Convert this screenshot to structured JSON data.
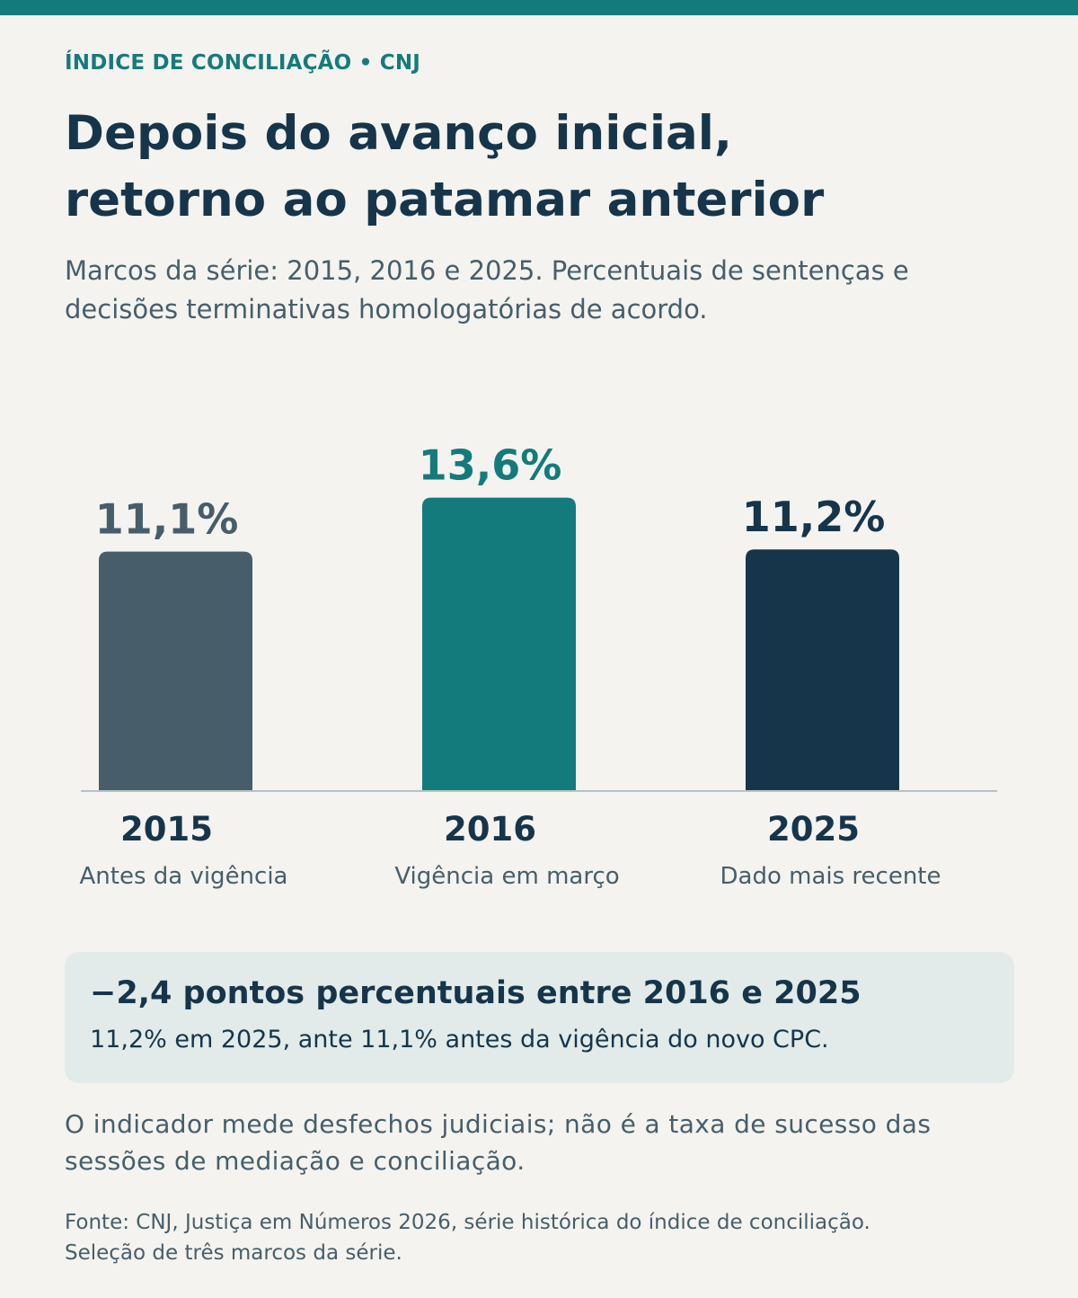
{
  "colors": {
    "accent": "#147b7c",
    "dark": "#16354b",
    "muted": "#475e6a",
    "background": "#f4f3ef",
    "callout_bg": "#e2ebe9",
    "baseline": "#b5c3c6"
  },
  "header": {
    "kicker": "ÍNDICE DE CONCILIAÇÃO • CNJ",
    "title_lines": [
      "Depois do avanço inicial,",
      "retorno ao patamar anterior"
    ],
    "subtitle_lines": [
      "Marcos da série: 2015, 2016 e 2025. Percentuais de sentenças e",
      "decisões terminativas homologatórias de acordo."
    ]
  },
  "chart_data": {
    "type": "bar",
    "categories": [
      "2015",
      "2016",
      "2025"
    ],
    "category_sublabels": [
      "Antes da vigência",
      "Vigência em março",
      "Dado mais recente"
    ],
    "values": [
      11.1,
      13.6,
      11.2
    ],
    "value_labels": [
      "11,1%",
      "13,6%",
      "11,2%"
    ],
    "bar_colors": [
      "#475e6a",
      "#147b7c",
      "#16354b"
    ],
    "value_label_colors": [
      "#475e6a",
      "#147b7c",
      "#16354b"
    ],
    "ylim": [
      0,
      15
    ],
    "grid": false,
    "legend": "none"
  },
  "callout": {
    "title": "−2,4 pontos percentuais entre 2016 e 2025",
    "text": "11,2% em 2025, ante 11,1% antes da vigência do novo CPC."
  },
  "note_lines": [
    "O indicador mede desfechos judiciais; não é a taxa de sucesso das",
    "sessões de mediação e conciliação."
  ],
  "source_lines": [
    "Fonte: CNJ, Justiça em Números 2026, série histórica do índice de conciliação.",
    "Seleção de três marcos da série."
  ]
}
